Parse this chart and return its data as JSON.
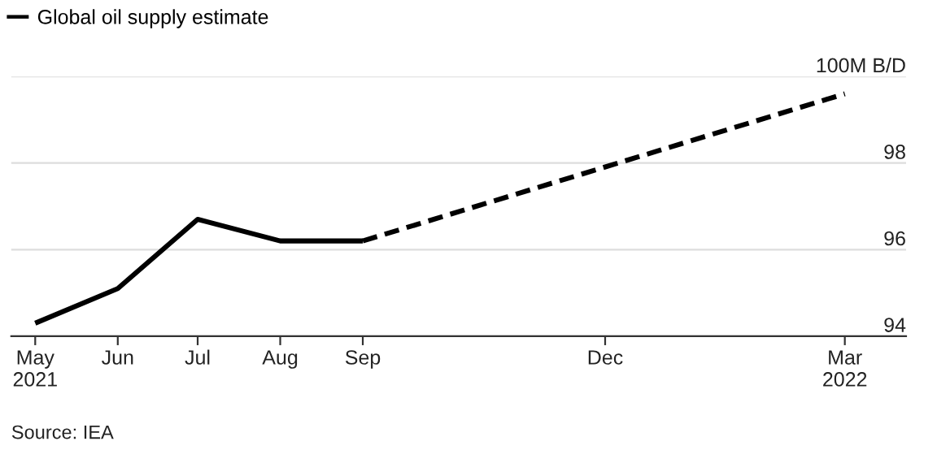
{
  "chart_data": {
    "type": "line",
    "series": [
      {
        "name": "Global oil supply estimate",
        "color": "#000000",
        "line_style": "solid",
        "x": [
          "2021-05",
          "2021-06",
          "2021-07",
          "2021-08",
          "2021-09"
        ],
        "values": [
          94.3,
          95.1,
          96.7,
          96.2,
          96.2
        ]
      },
      {
        "color": "#000000",
        "line_style": "dashed",
        "x": [
          "2021-09",
          "2022-03"
        ],
        "values": [
          96.2,
          99.6
        ]
      }
    ],
    "xlim": [
      "2021-04-22",
      "2022-03-24"
    ],
    "xticks": [
      {
        "value": "2021-05",
        "label": "May\n2021"
      },
      {
        "value": "2021-06",
        "label": "Jun"
      },
      {
        "value": "2021-07",
        "label": "Jul"
      },
      {
        "value": "2021-08",
        "label": "Aug"
      },
      {
        "value": "2021-09",
        "label": "Sep"
      },
      {
        "value": "2021-12",
        "label": "Dec"
      },
      {
        "value": "2022-03",
        "label": "Mar\n2022"
      }
    ],
    "ylim": [
      94,
      100
    ],
    "yticks": [
      94,
      96,
      98,
      {
        "value": 100,
        "label": "100M B/D"
      }
    ],
    "grid": "y",
    "legend": "top left",
    "marker": "none",
    "annotations": [
      "Source: IEA"
    ]
  }
}
